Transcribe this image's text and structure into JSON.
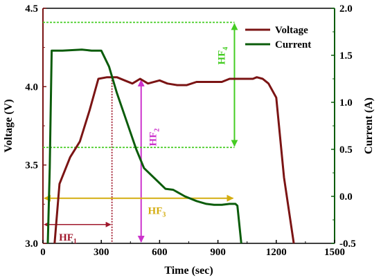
{
  "chart_data": {
    "type": "line",
    "xlabel": "Time (sec)",
    "ylabel_left": "Voltage (V)",
    "ylabel_right": "Current (A)",
    "xlim": [
      0,
      1500
    ],
    "ylim_left": [
      3.0,
      4.5
    ],
    "ylim_right": [
      -0.5,
      2.0
    ],
    "x_ticks": [
      0,
      300,
      600,
      900,
      1200,
      1500
    ],
    "y_left_ticks": [
      "3.0",
      "3.5",
      "4.0",
      "4.5"
    ],
    "y_right_ticks": [
      "-0.5",
      "0.0",
      "0.5",
      "1.0",
      "1.5",
      "2.0"
    ],
    "legend_position": "top-right",
    "grid": false,
    "series": [
      {
        "name": "Voltage",
        "axis": "left",
        "color": "#7b1414",
        "x": [
          60,
          85,
          140,
          190,
          240,
          285,
          330,
          380,
          420,
          460,
          500,
          540,
          600,
          640,
          690,
          740,
          790,
          840,
          880,
          920,
          960,
          1000,
          1040,
          1080,
          1100,
          1130,
          1160,
          1200,
          1240,
          1290
        ],
        "y": [
          3.0,
          3.38,
          3.55,
          3.65,
          3.85,
          4.05,
          4.06,
          4.06,
          4.04,
          4.02,
          4.05,
          4.02,
          4.04,
          4.02,
          4.01,
          4.01,
          4.03,
          4.03,
          4.03,
          4.03,
          4.05,
          4.05,
          4.05,
          4.05,
          4.06,
          4.05,
          4.02,
          3.93,
          3.42,
          3.0
        ]
      },
      {
        "name": "Current",
        "axis": "right",
        "color": "#0b5c0b",
        "x": [
          25,
          35,
          45,
          100,
          200,
          250,
          300,
          340,
          380,
          430,
          480,
          520,
          580,
          630,
          670,
          730,
          790,
          840,
          880,
          920,
          960,
          990,
          1000,
          1020
        ],
        "y": [
          -0.5,
          0.3,
          1.55,
          1.55,
          1.56,
          1.55,
          1.55,
          1.38,
          1.1,
          0.8,
          0.5,
          0.3,
          0.18,
          0.08,
          0.07,
          0.0,
          -0.05,
          -0.08,
          -0.09,
          -0.09,
          -0.08,
          -0.08,
          -0.1,
          -0.5
        ]
      }
    ],
    "annotations": [
      {
        "label": "HF",
        "sub": "1",
        "color": "#a0182c",
        "type": "horizontal-arrow",
        "x_start": 0,
        "x_end": 355,
        "y_left": 3.12,
        "guide_x": 355
      },
      {
        "label": "HF",
        "sub": "2",
        "color": "#cc33cc",
        "type": "vertical-arrow",
        "x": 505,
        "y_left_start": 3.0,
        "y_left_end": 4.05
      },
      {
        "label": "HF",
        "sub": "3",
        "color": "#d4ad10",
        "type": "double-horizontal-arrow",
        "x_start": 0,
        "x_end": 985,
        "y_right": -0.02
      },
      {
        "label": "HF",
        "sub": "4",
        "color": "#44cc22",
        "type": "vertical-arrow",
        "x": 985,
        "y_right_start": 0.52,
        "y_right_end": 1.85,
        "guide_y_right": [
          0.52,
          1.85
        ]
      }
    ]
  }
}
